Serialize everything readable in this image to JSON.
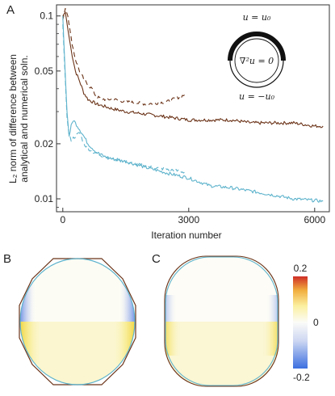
{
  "panels": {
    "a": "A",
    "b": "B",
    "c": "C"
  },
  "colors": {
    "brown": "#6b3318",
    "blue": "#5eb3cc",
    "ring": "#111111",
    "axis": "#333333"
  },
  "inset": {
    "top_label": "u = u₀",
    "center_label": "∇²u = 0",
    "bottom_label": "u = −u₀"
  },
  "colorbar": {
    "max_label": "0.2",
    "mid_label": "0",
    "min_label": "-0.2",
    "range": [
      -0.2,
      0.2
    ],
    "colormap": "blue-white-yellow-red"
  },
  "chart_data": {
    "type": "line",
    "xlabel": "Iteration number",
    "ylabel_line1": "L₂ norm of difference between",
    "ylabel_line2": "analytical and numerical soln.",
    "xlim": [
      -150,
      6350
    ],
    "ylim": [
      0.0085,
      0.115
    ],
    "yscale": "log",
    "xticks": [
      0,
      3000,
      6000
    ],
    "xtick_labels": [
      "0",
      "3000",
      "6000"
    ],
    "yticks": [
      0.01,
      0.02,
      0.05,
      0.1
    ],
    "ytick_labels": [
      "0.01",
      "0.02",
      "0.05",
      "0.1"
    ],
    "series": [
      {
        "color": "brown",
        "style": "solid",
        "x": [
          0,
          60,
          120,
          200,
          300,
          400,
          500,
          600,
          700,
          800,
          1000,
          1200,
          1500,
          2000,
          2500,
          3000,
          3500,
          4000,
          4500,
          5000,
          5500,
          6000,
          6200
        ],
        "y": [
          0.1,
          0.105,
          0.085,
          0.065,
          0.05,
          0.044,
          0.038,
          0.035,
          0.034,
          0.033,
          0.032,
          0.031,
          0.03,
          0.029,
          0.028,
          0.027,
          0.027,
          0.027,
          0.026,
          0.026,
          0.026,
          0.025,
          0.025
        ]
      },
      {
        "color": "brown",
        "style": "dashed",
        "x": [
          0,
          60,
          120,
          200,
          300,
          400,
          500,
          600,
          700,
          800,
          1000,
          1200,
          1500,
          2000,
          2500,
          2900
        ],
        "y": [
          0.095,
          0.11,
          0.1,
          0.075,
          0.058,
          0.05,
          0.045,
          0.042,
          0.04,
          0.036,
          0.035,
          0.035,
          0.034,
          0.033,
          0.034,
          0.037
        ]
      },
      {
        "color": "blue",
        "style": "solid",
        "x": [
          0,
          40,
          100,
          150,
          200,
          250,
          300,
          400,
          500,
          600,
          800,
          1000,
          1200,
          1500,
          2000,
          2500,
          3000,
          3500,
          4000,
          4500,
          5000,
          5500,
          6000,
          6200
        ],
        "y": [
          0.1,
          0.06,
          0.03,
          0.022,
          0.025,
          0.027,
          0.026,
          0.024,
          0.022,
          0.02,
          0.018,
          0.017,
          0.0165,
          0.016,
          0.0148,
          0.0138,
          0.013,
          0.0118,
          0.0115,
          0.011,
          0.0105,
          0.01,
          0.0098,
          0.0097
        ]
      },
      {
        "color": "blue",
        "style": "dashed",
        "x": [
          0,
          50,
          100,
          150,
          200,
          300,
          400,
          500,
          700,
          1000,
          1200,
          1500,
          2000,
          2500,
          2900
        ],
        "y": [
          0.09,
          0.05,
          0.028,
          0.022,
          0.021,
          0.022,
          0.023,
          0.02,
          0.018,
          0.017,
          0.0165,
          0.016,
          0.015,
          0.0145,
          0.014
        ]
      }
    ]
  }
}
